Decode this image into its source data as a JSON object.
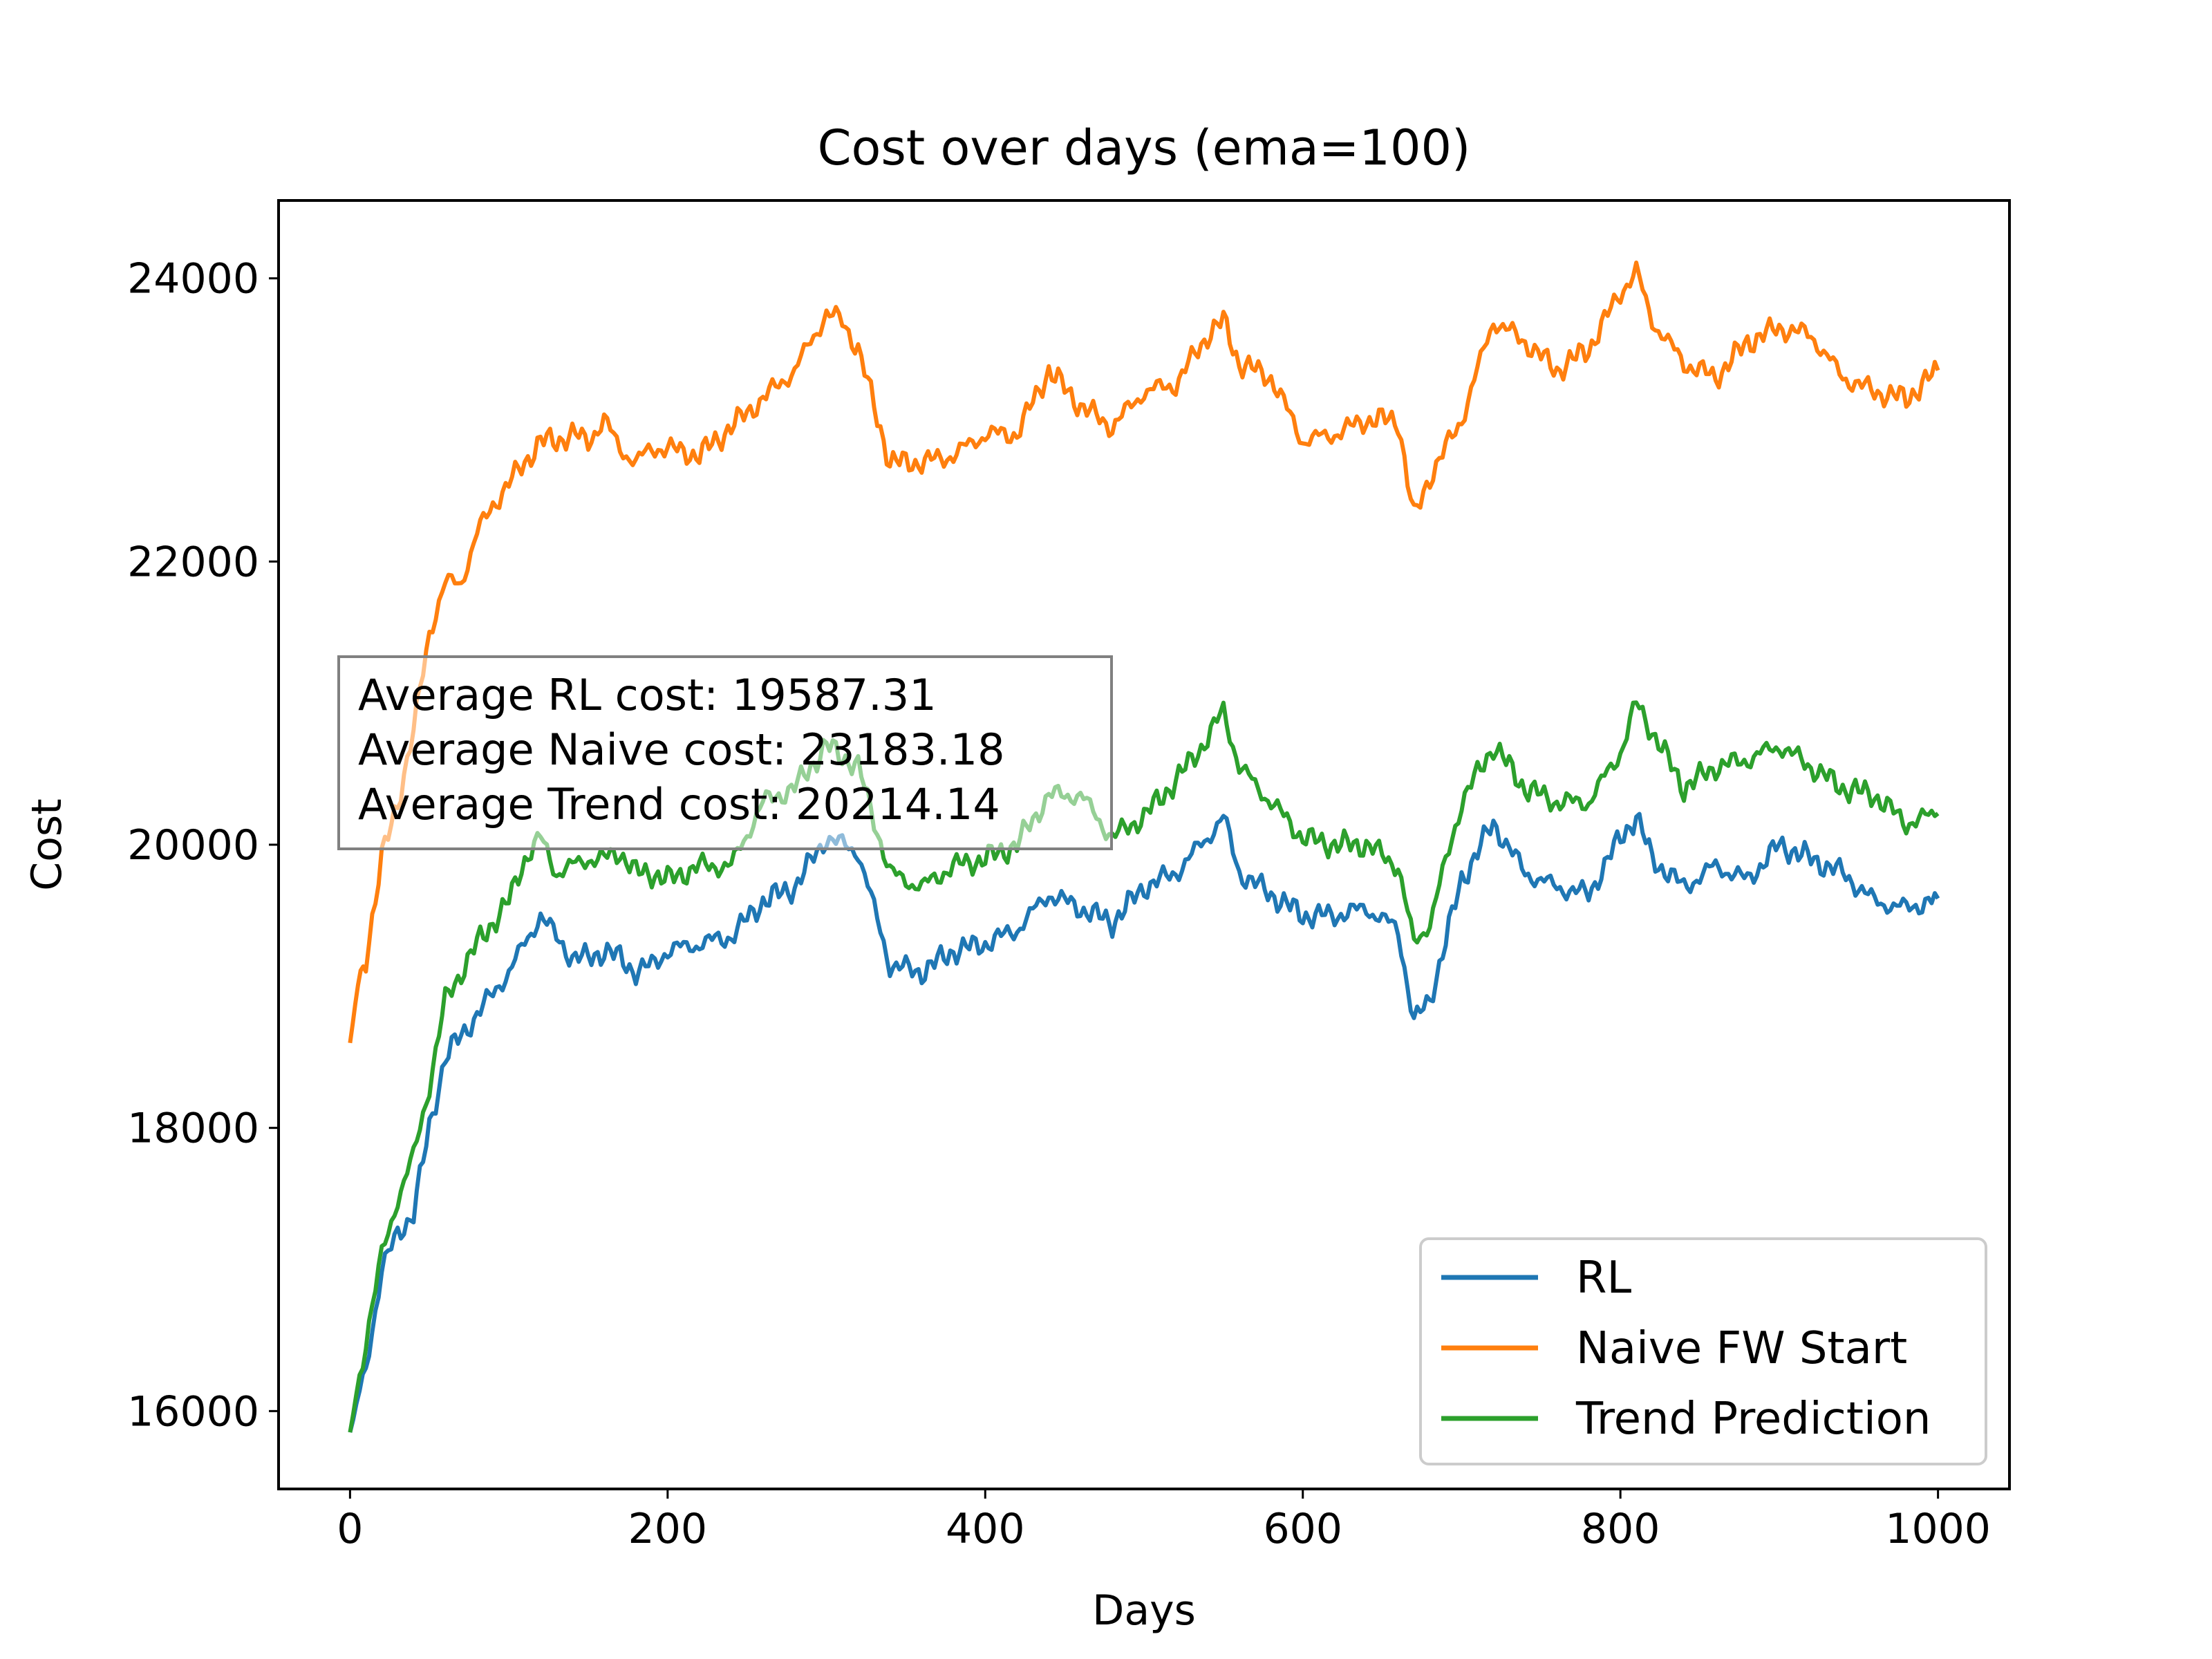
{
  "chart_data": {
    "type": "line",
    "title": "Cost over days (ema=100)",
    "xlabel": "Days",
    "ylabel": "Cost",
    "xlim": [
      -45,
      1045
    ],
    "ylim": [
      15450,
      24550
    ],
    "xticks": [
      0,
      200,
      400,
      600,
      800,
      1000
    ],
    "yticks": [
      16000,
      18000,
      20000,
      22000,
      24000
    ],
    "xtick_labels": [
      "0",
      "200",
      "400",
      "600",
      "800",
      "1000"
    ],
    "ytick_labels": [
      "16000",
      "18000",
      "20000",
      "22000",
      "24000"
    ],
    "grid": false,
    "legend_position": "lower-right",
    "annotation_lines": [
      "Average RL cost: 19587.31",
      "Average Naive cost: 23183.18",
      "Average Trend cost: 20214.14"
    ],
    "series": [
      {
        "name": "RL",
        "color": "#1f77b4",
        "x": [
          0,
          10,
          20,
          30,
          40,
          50,
          60,
          70,
          80,
          90,
          100,
          110,
          120,
          130,
          140,
          150,
          160,
          170,
          180,
          190,
          200,
          220,
          240,
          260,
          280,
          300,
          320,
          340,
          360,
          380,
          400,
          420,
          440,
          460,
          480,
          500,
          520,
          540,
          550,
          560,
          580,
          600,
          620,
          640,
          660,
          670,
          680,
          700,
          720,
          740,
          760,
          780,
          800,
          810,
          820,
          840,
          860,
          880,
          900,
          920,
          940,
          960,
          980,
          1000
        ],
        "y": [
          15850,
          16300,
          17000,
          17250,
          17400,
          18000,
          18500,
          18650,
          18800,
          18950,
          19100,
          19300,
          19500,
          19350,
          19200,
          19200,
          19250,
          19200,
          19100,
          19150,
          19250,
          19300,
          19350,
          19600,
          19700,
          20050,
          19950,
          19150,
          19100,
          19250,
          19300,
          19400,
          19650,
          19550,
          19450,
          19700,
          19800,
          20050,
          20200,
          19800,
          19650,
          19500,
          19500,
          19550,
          19400,
          18750,
          18900,
          19750,
          20150,
          19800,
          19700,
          19650,
          20050,
          20200,
          19900,
          19700,
          19850,
          19750,
          20000,
          19900,
          19800,
          19600,
          19550,
          19620
        ]
      },
      {
        "name": "Naive FW Start",
        "color": "#ff7f0e",
        "x": [
          0,
          5,
          10,
          20,
          30,
          40,
          50,
          60,
          70,
          80,
          90,
          100,
          110,
          120,
          130,
          140,
          150,
          160,
          170,
          180,
          190,
          200,
          220,
          240,
          260,
          280,
          300,
          310,
          320,
          340,
          360,
          380,
          400,
          420,
          440,
          460,
          480,
          500,
          520,
          540,
          550,
          560,
          580,
          600,
          620,
          640,
          660,
          670,
          680,
          700,
          720,
          740,
          760,
          780,
          800,
          810,
          820,
          840,
          860,
          880,
          900,
          920,
          940,
          960,
          980,
          1000
        ],
        "y": [
          18600,
          19000,
          19200,
          19900,
          20300,
          20800,
          21500,
          21850,
          21850,
          22200,
          22400,
          22550,
          22700,
          22850,
          22850,
          22900,
          22850,
          23000,
          22800,
          22700,
          22800,
          22800,
          22750,
          22950,
          23150,
          23350,
          23750,
          23700,
          23500,
          22700,
          22700,
          22750,
          22900,
          22900,
          23350,
          23100,
          22950,
          23200,
          23250,
          23600,
          23700,
          23400,
          23300,
          22850,
          22900,
          23000,
          23000,
          22300,
          22600,
          23000,
          23700,
          23550,
          23350,
          23500,
          23900,
          24050,
          23700,
          23400,
          23300,
          23550,
          23650,
          23600,
          23300,
          23200,
          23150,
          23350
        ]
      },
      {
        "name": "Trend Prediction",
        "color": "#2ca02c",
        "x": [
          0,
          10,
          20,
          30,
          40,
          50,
          60,
          70,
          80,
          90,
          100,
          110,
          120,
          130,
          140,
          150,
          160,
          170,
          180,
          190,
          200,
          220,
          240,
          260,
          280,
          300,
          320,
          340,
          360,
          380,
          400,
          420,
          440,
          460,
          480,
          500,
          520,
          540,
          550,
          560,
          580,
          600,
          620,
          640,
          660,
          670,
          680,
          700,
          720,
          740,
          760,
          780,
          800,
          810,
          820,
          840,
          860,
          880,
          900,
          920,
          940,
          960,
          980,
          1000
        ],
        "y": [
          15850,
          16500,
          17100,
          17500,
          17800,
          18300,
          18900,
          19100,
          19300,
          19450,
          19600,
          19900,
          20050,
          19800,
          19850,
          19900,
          19900,
          19950,
          19800,
          19800,
          19750,
          19850,
          19850,
          20300,
          20400,
          20700,
          20550,
          19800,
          19700,
          19850,
          19900,
          20000,
          20350,
          20350,
          20050,
          20200,
          20450,
          20750,
          20950,
          20550,
          20300,
          20050,
          20000,
          20000,
          19850,
          19300,
          19450,
          20300,
          20700,
          20400,
          20300,
          20300,
          20650,
          21000,
          20800,
          20400,
          20550,
          20600,
          20700,
          20550,
          20400,
          20350,
          20150,
          20220
        ]
      }
    ]
  }
}
